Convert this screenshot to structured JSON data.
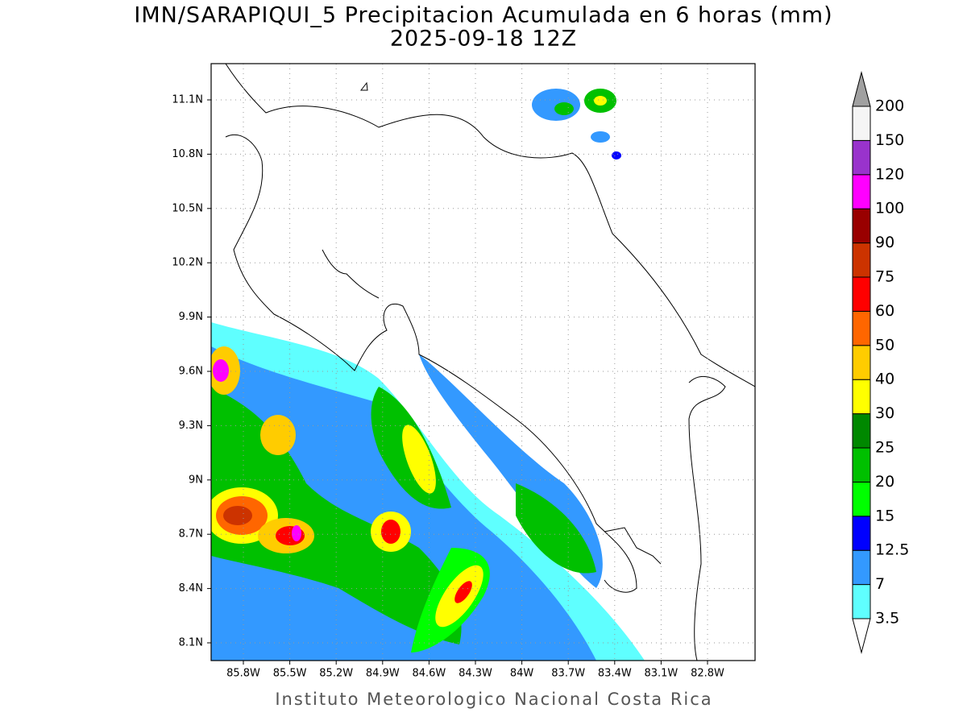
{
  "title": "IMN/SARAPIQUI_5 Precipitacion Acumulada en 6 horas (mm)",
  "subtitle": "2025-09-18 12Z",
  "lat_labels": [
    "11.1N",
    "10.8N",
    "10.5N",
    "10.2N",
    "9.9N",
    "9.6N",
    "9.3N",
    "9N",
    "8.7N",
    "8.4N",
    "8.1N"
  ],
  "lon_labels": [
    "85.8W",
    "85.5W",
    "85.2W",
    "84.9W",
    "84.6W",
    "84.3W",
    "84W",
    "83.7W",
    "83.4W",
    "83.1W",
    "82.8W"
  ],
  "colorbar": {
    "levels": [
      3.5,
      7,
      12.5,
      15,
      20,
      25,
      30,
      40,
      50,
      60,
      75,
      90,
      100,
      120,
      150,
      200
    ],
    "colors": [
      "#ffffff",
      "#5fffff",
      "#3399ff",
      "#0000ff",
      "#00ff00",
      "#00c000",
      "#008800",
      "#ffff00",
      "#ffcc00",
      "#ff6600",
      "#ff0000",
      "#cc3300",
      "#990000",
      "#ff00ff",
      "#9933cc",
      "#f5f5f5",
      "#a0a0a0"
    ]
  },
  "footer": "Instituto Meteorologico Nacional Costa Rica"
}
